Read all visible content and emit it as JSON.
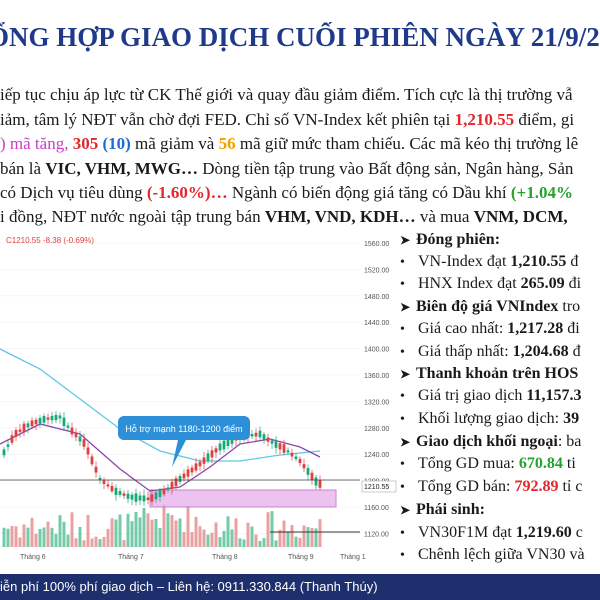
{
  "title": "ỔNG HỢP GIAO DỊCH CUỐI PHIÊN NGÀY 21/9/20",
  "paragraphs": {
    "line1": {
      "a": "iếp tục chịu áp lực từ CK Thế giới và quay đầu giảm điểm. Tích cực là thị trường vẫ"
    },
    "line2": {
      "a": "iảm, tâm lý NĐT vẫn chờ đợi FED. Chỉ số VN-Index kết phiên tại ",
      "b": "1,210.55",
      "c": " điểm, gi"
    },
    "line3": {
      "a": ") mã tăng, ",
      "b": "305",
      "c": " (10)",
      "d": " mã giảm và ",
      "e": "56",
      "f": " mã giữ mức tham chiếu. Các mã kéo thị trường lê"
    },
    "line4": {
      "a": "bán là ",
      "b": "VIC, VHM, MWG…",
      "c": " Dòng tiền tập trung vào Bất động sản, Ngân hàng, Sản"
    },
    "line5": {
      "a": " có Dịch vụ tiêu dùng ",
      "b": "(-1.60%)…",
      "c": " Ngành có biến động giá tăng có Dầu khí ",
      "d": "(+1.04%"
    },
    "line6": {
      "a": "i đồng, NĐT nước ngoài tập trung bán ",
      "b": "VHM, VND, KDH…",
      "c": " và mua ",
      "d": "VNM, DCM,"
    }
  },
  "chart": {
    "header_label": "C1210.55 -8.38 (-0.69%)",
    "support_label": "Hỗ trợ mạnh 1180-1200 điểm",
    "last_price_label": "1210.55",
    "y_ticks": [
      "1560.00",
      "1520.00",
      "1480.00",
      "1440.00",
      "1400.00",
      "1360.00",
      "1320.00",
      "1280.00",
      "1240.00",
      "1200.00",
      "1160.00",
      "1120.00"
    ],
    "x_ticks": [
      "Tháng 6",
      "Tháng 7",
      "Tháng 8",
      "Tháng 9",
      "Tháng 1"
    ],
    "colors": {
      "up": "#1aa87a",
      "down": "#e04040",
      "ma_blue": "#5ec8e8",
      "ma_purple": "#8e44ad",
      "support_fill": "#e9b8ef",
      "volume": "#46b98e"
    }
  },
  "sidebar": {
    "closing_head": "Đóng phiên:",
    "vnindex": {
      "label": "VN-Index đạt ",
      "value": "1,210.55",
      "tail": " đ"
    },
    "hnx": {
      "label": "HNX Index đạt ",
      "value": "265.09",
      "tail": " đi"
    },
    "range_head": "Biên độ giá VNIndex",
    "range_tail": " tro",
    "high": {
      "label": "Giá cao nhất: ",
      "value": "1,217.28",
      "tail": " đi"
    },
    "low": {
      "label": "Giá thấp nhất: ",
      "value": "1,204.68",
      "tail": " đ"
    },
    "liquidity_head": "Thanh khoản trên HOS",
    "trade_value": {
      "label": "Giá trị giao dịch ",
      "value": "11,157.3"
    },
    "trade_volume": {
      "label": "Khối lượng giao dịch: ",
      "value": "39"
    },
    "foreign_head": "Giao dịch khối ngoại",
    "foreign_tail": ": ba",
    "buy": {
      "label": "Tổng GD mua: ",
      "value": "670.84",
      "tail": " ti"
    },
    "sell": {
      "label": "Tổng GD bán: ",
      "value": "792.89",
      "tail": " tỉ c"
    },
    "deriv_head": "Phái sinh:",
    "vn30f": {
      "label": "VN30F1M đạt ",
      "value": "1,219.60",
      "tail": " c"
    },
    "spread": {
      "label": "Chênh lệch giữa VN30 và"
    }
  },
  "footer": "iễn phí 100% phí giao dịch – Liên hệ: 0911.330.844 (Thanh Thúy)"
}
